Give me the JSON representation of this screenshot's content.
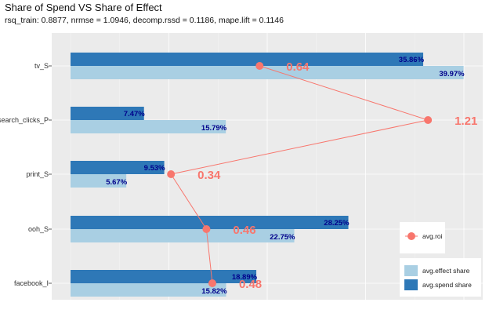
{
  "chart_data": {
    "type": "bar",
    "title": "Share of Spend VS Share of Effect",
    "subtitle": "rsq_train: 0.8877, nrmse = 1.0946, decomp.rssd = 0.1186, mape.lift = 0.1146",
    "categories": [
      "tv_S",
      "search_clicks_P",
      "print_S",
      "ooh_S",
      "facebook_I"
    ],
    "series": [
      {
        "name": "avg.spend share",
        "values": [
          35.86,
          7.47,
          9.53,
          28.25,
          18.89
        ],
        "labels": [
          "35.86%",
          "7.47%",
          "9.53%",
          "28.25%",
          "18.89%"
        ]
      },
      {
        "name": "avg.effect share",
        "values": [
          39.97,
          15.79,
          5.67,
          22.75,
          15.82
        ],
        "labels": [
          "39.97%",
          "15.79%",
          "5.67%",
          "22.75%",
          "15.82%"
        ]
      }
    ],
    "roi": {
      "name": "avg.roi",
      "values": [
        0.64,
        1.21,
        0.34,
        0.46,
        0.48
      ],
      "labels": [
        "0.64",
        "1.21",
        "0.34",
        "0.46",
        "0.48"
      ]
    },
    "xlim": [
      0,
      42
    ],
    "grid": true,
    "legend_position": "right",
    "colors": {
      "spend": "#2E78B7",
      "effect": "#A9CFE3",
      "roi": "#F8766D",
      "panel": "#EBEBEB",
      "grid": "#FFFFFF",
      "label": "#00008B"
    }
  }
}
